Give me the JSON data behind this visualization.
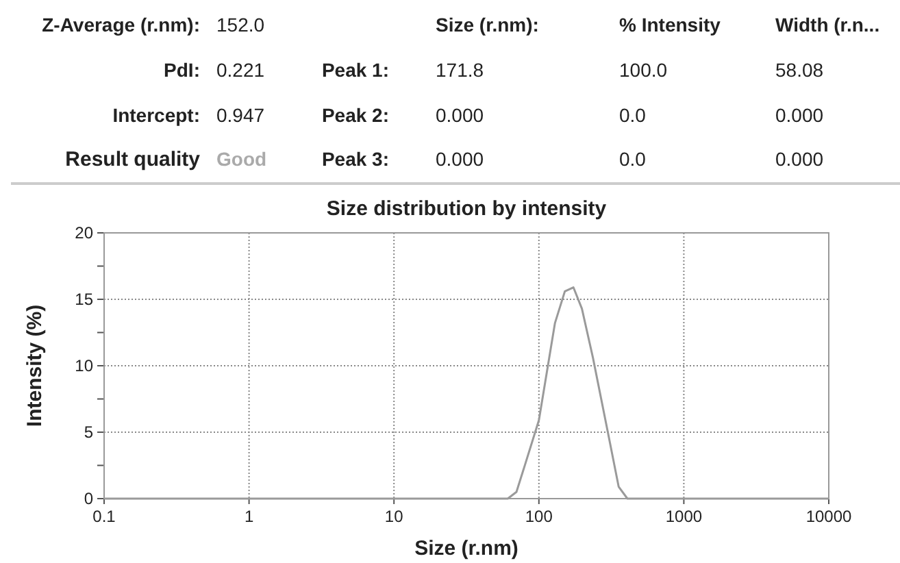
{
  "chart_data": [
    {
      "type": "other",
      "annotations": [
        "Z-Average (r.nm):",
        "152.0",
        "Size (r.nm):",
        "% Intensity",
        "Width (r.n...",
        "PdI:",
        "0.221",
        "Peak 1:",
        "171.8",
        "100.0",
        "58.08",
        "Intercept:",
        "0.947",
        "Peak 2:",
        "0.000",
        "0.0",
        "0.000",
        "Result quality",
        "Good",
        "Peak 3:",
        "0.000",
        "0.0",
        "0.000"
      ]
    },
    {
      "type": "line",
      "title": "Size distribution by intensity",
      "xlabel": "Size (r.nm)",
      "ylabel": "Intensity (%)",
      "log": "x",
      "grid": true,
      "xlim": [
        0.1,
        10000
      ],
      "ylim": [
        0,
        20
      ],
      "xticks": [
        0.1,
        1,
        10,
        100,
        1000,
        10000
      ],
      "yticks": [
        0,
        {
          "value": 2.5,
          "label": null
        },
        5,
        {
          "value": 7.5,
          "label": null
        },
        10,
        {
          "value": 12.5,
          "label": null
        },
        15,
        {
          "value": 17.5,
          "label": null
        },
        20
      ],
      "series": [
        {
          "color": "#9a9a9a",
          "x": [
            0.1,
            61,
            70,
            81,
            100,
            129,
            151,
            173,
            198,
            236,
            299,
            355,
            408,
            10000
          ],
          "values": [
            0,
            0,
            0.5,
            2.7,
            5.9,
            13.2,
            15.6,
            15.9,
            14.3,
            10.6,
            5.0,
            0.9,
            0,
            0
          ]
        }
      ]
    }
  ]
}
